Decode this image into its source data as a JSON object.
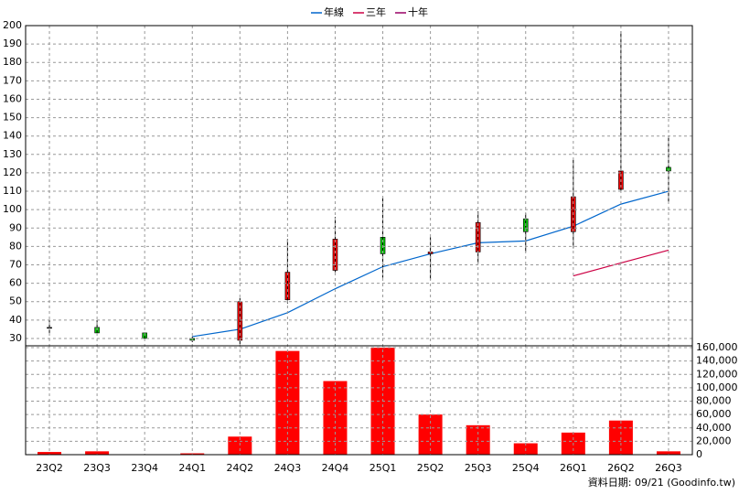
{
  "chart_data": [
    {
      "type": "candlestick",
      "categories": [
        "23Q2",
        "23Q3",
        "23Q4",
        "24Q1",
        "24Q2",
        "24Q3",
        "24Q4",
        "25Q1",
        "25Q2",
        "25Q3",
        "25Q4",
        "26Q1",
        "26Q2",
        "26Q3"
      ],
      "open": [
        36,
        36,
        33,
        30,
        29,
        51,
        67,
        85,
        76,
        77,
        95,
        88,
        111,
        123
      ],
      "high": [
        40,
        40,
        33,
        31,
        52,
        84,
        96,
        107,
        85,
        99,
        98,
        127,
        197,
        140
      ],
      "low": [
        33,
        33,
        30,
        28,
        27,
        49,
        66,
        63,
        62,
        71,
        77,
        79,
        110,
        104
      ],
      "close": [
        36,
        33,
        30,
        29,
        50,
        66,
        84,
        76,
        77,
        93,
        88,
        107,
        121,
        121
      ],
      "up_color": "#ff0000",
      "down_color": "#00cc00",
      "series": [
        {
          "name": "年線",
          "color": "#0066cc",
          "values": [
            null,
            null,
            null,
            31,
            35,
            44,
            57,
            69,
            76,
            82,
            83,
            91,
            103,
            110
          ]
        },
        {
          "name": "三年",
          "color": "#cc0044",
          "values": [
            null,
            null,
            null,
            null,
            null,
            null,
            null,
            null,
            null,
            null,
            null,
            64,
            71,
            78
          ]
        },
        {
          "name": "十年",
          "color": "#990066",
          "values": [
            null,
            null,
            null,
            null,
            null,
            null,
            null,
            null,
            null,
            null,
            null,
            null,
            null,
            null
          ]
        }
      ],
      "ylim": [
        26,
        200
      ],
      "yticks": [
        30,
        40,
        50,
        60,
        70,
        80,
        90,
        100,
        110,
        120,
        130,
        140,
        150,
        160,
        170,
        180,
        190,
        200
      ],
      "grid": true
    },
    {
      "type": "bar",
      "categories": [
        "23Q2",
        "23Q3",
        "23Q4",
        "24Q1",
        "24Q2",
        "24Q3",
        "24Q4",
        "25Q1",
        "25Q2",
        "25Q3",
        "25Q4",
        "26Q1",
        "26Q2",
        "26Q3"
      ],
      "values": [
        4000,
        5000,
        500,
        2000,
        27000,
        155000,
        110000,
        160000,
        60000,
        44000,
        17000,
        33000,
        51000,
        5000
      ],
      "color": "#ff0000",
      "ylim": [
        0,
        160000
      ],
      "yticks": [
        0,
        {
          "value": 20000,
          "label": "20,000"
        },
        {
          "value": 40000,
          "label": "40,000"
        },
        {
          "value": 60000,
          "label": "60,000"
        },
        {
          "value": 80000,
          "label": "80,000"
        },
        {
          "value": 100000,
          "label": "100,000"
        },
        {
          "value": 120000,
          "label": "120,000"
        },
        {
          "value": 140000,
          "label": "140,000"
        },
        {
          "value": 160000,
          "label": "160,000"
        }
      ],
      "grid": true,
      "footer": "資料日期: 09/21  (Goodinfo.tw)"
    }
  ]
}
